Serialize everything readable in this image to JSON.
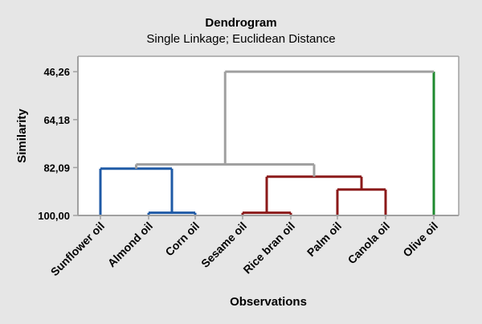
{
  "chart_data": {
    "type": "dendrogram",
    "title": "Dendrogram",
    "subtitle": "Single Linkage; Euclidean Distance",
    "xlabel": "Observations",
    "ylabel": "Similarity",
    "yticks": [
      "46,26",
      "64,18",
      "82,09",
      "100,00"
    ],
    "ytick_values": [
      46.26,
      64.18,
      82.09,
      100.0
    ],
    "ylim": [
      40.5,
      100.0
    ],
    "categories": [
      "Sunflower oil",
      "Almond oil",
      "Corn oil",
      "Sesame oil",
      "Rice bran oil",
      "Palm oil",
      "Canola oil",
      "Olive oil"
    ],
    "merges": [
      {
        "a": "Almond oil",
        "b": "Corn oil",
        "similarity": 99.0,
        "color": "#1f5aa6"
      },
      {
        "a": "Sesame oil",
        "b": "Rice bran oil",
        "similarity": 99.0,
        "color": "#8b1a1a"
      },
      {
        "a": "Palm oil",
        "b": "Canola oil",
        "similarity": 90.3,
        "color": "#8b1a1a"
      },
      {
        "a": "Sesame oil + Rice bran oil",
        "b": "Palm oil + Canola oil",
        "similarity": 85.5,
        "color": "#8b1a1a"
      },
      {
        "a": "Sunflower oil",
        "b": "Almond oil + Corn oil",
        "similarity": 82.5,
        "color": "#1f5aa6"
      },
      {
        "a": "Sunflower oil + Almond oil + Corn oil",
        "b": "Sesame oil + Rice bran oil + Palm oil + Canola oil",
        "similarity": 80.9,
        "color": "#a0a0a0"
      },
      {
        "a": "Olive oil",
        "b": "all others",
        "similarity": 46.26,
        "color": "#a0a0a0"
      }
    ],
    "leaf_colors": {
      "Sunflower oil": "#1f5aa6",
      "Almond oil": "#1f5aa6",
      "Corn oil": "#1f5aa6",
      "Sesame oil": "#8b1a1a",
      "Rice bran oil": "#8b1a1a",
      "Palm oil": "#8b1a1a",
      "Canola oil": "#8b1a1a",
      "Olive oil": "#1e8a2e"
    },
    "grid": false,
    "legend": "none"
  },
  "colors": {
    "background": "#e6e6e6",
    "plot_background": "#ffffff",
    "axis": "#a0a0a0"
  }
}
